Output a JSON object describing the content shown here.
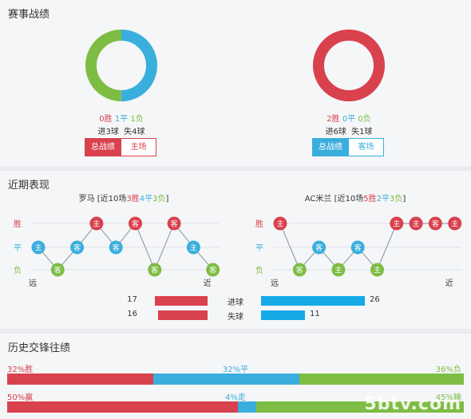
{
  "section1": {
    "title": "赛事战绩",
    "left": {
      "donut": {
        "win": 0,
        "draw": 1,
        "loss": 1
      },
      "record": {
        "win": "0胜",
        "draw": "1平",
        "loss": "1负"
      },
      "goals": "进3球  失4球",
      "buttons": [
        "总战绩",
        "主场"
      ]
    },
    "right": {
      "donut": {
        "win": 2,
        "draw": 0,
        "loss": 0
      },
      "record": {
        "win": "2胜",
        "draw": "0平",
        "loss": "0负"
      },
      "goals": "进6球  失1球",
      "buttons": [
        "总战绩",
        "客场"
      ]
    }
  },
  "section2": {
    "title": "近期表现",
    "left": {
      "team_prefix": "罗马 [近10场",
      "wins": "3胜",
      "draws": "4平",
      "losses": "3负",
      "suffix": "]",
      "axis_labels": {
        "win": "胜",
        "draw": "平",
        "loss": "负"
      },
      "far": "远",
      "near": "近",
      "matches": [
        {
          "result": "平",
          "venue": "主"
        },
        {
          "result": "负",
          "venue": "客"
        },
        {
          "result": "平",
          "venue": "客"
        },
        {
          "result": "胜",
          "venue": "主"
        },
        {
          "result": "平",
          "venue": "客"
        },
        {
          "result": "胜",
          "venue": "客"
        },
        {
          "result": "负",
          "venue": "客"
        },
        {
          "result": "胜",
          "venue": "客"
        },
        {
          "result": "平",
          "venue": "主"
        },
        {
          "result": "负",
          "venue": "客"
        }
      ]
    },
    "right": {
      "team_prefix": "AC米兰 [近10场",
      "wins": "5胜",
      "draws": "2平",
      "losses": "3负",
      "suffix": "]",
      "axis_labels": {
        "win": "胜",
        "draw": "平",
        "loss": "负"
      },
      "far": "远",
      "near": "近",
      "matches": [
        {
          "result": "胜",
          "venue": "主"
        },
        {
          "result": "负",
          "venue": "客"
        },
        {
          "result": "平",
          "venue": "客"
        },
        {
          "result": "负",
          "venue": "主"
        },
        {
          "result": "平",
          "venue": "客"
        },
        {
          "result": "负",
          "venue": "主"
        },
        {
          "result": "胜",
          "venue": "主"
        },
        {
          "result": "胜",
          "venue": "主"
        },
        {
          "result": "胜",
          "venue": "客"
        },
        {
          "result": "胜",
          "venue": "主"
        }
      ]
    },
    "goals": {
      "scored_label": "进球",
      "conceded_label": "失球",
      "left_scored": 17,
      "left_conceded": 16,
      "right_scored": 26,
      "right_conceded": 11
    }
  },
  "section3": {
    "title": "历史交锋往绩",
    "row1": {
      "left_label": "32%胜",
      "mid_label": "32%平",
      "right_label": "36%负",
      "values": [
        32,
        32,
        36
      ]
    },
    "row2": {
      "left_label": "50%赢",
      "mid_label": "4%走",
      "right_label": "45%输",
      "values": [
        50,
        4,
        45
      ]
    }
  },
  "colors": {
    "red": "#d9414d",
    "blue": "#3aaedc",
    "green": "#7dbd44"
  },
  "watermark": "5btv.com"
}
